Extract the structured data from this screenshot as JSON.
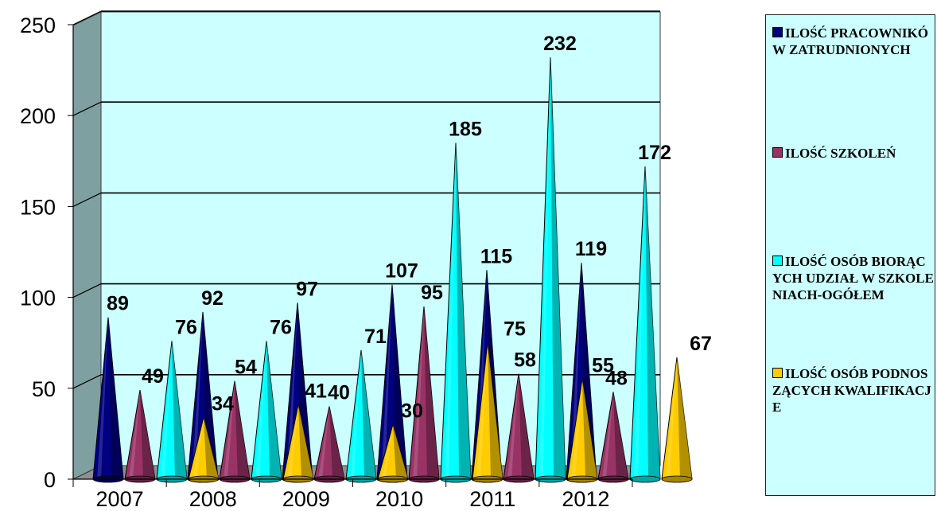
{
  "chart_data": {
    "type": "bar",
    "style": "3d-cone",
    "categories": [
      "2007",
      "2008",
      "2009",
      "2010",
      "2011",
      "2012"
    ],
    "series": [
      {
        "name": "ILOŚĆ PRACOWNIKÓW ZATRUDNIONYCH",
        "color": "#000080",
        "values": [
          89,
          92,
          97,
          107,
          115,
          119
        ]
      },
      {
        "name": "ILOŚĆ SZKOLEŃ",
        "color": "#993366",
        "values": [
          49,
          54,
          40,
          95,
          58,
          48
        ]
      },
      {
        "name": "ILOŚĆ OSÓB BIORĄCYCH UDZIAŁ W SZKOLENIACH-OGÓŁEM",
        "color": "#00ffff",
        "values": [
          76,
          76,
          71,
          185,
          232,
          172
        ]
      },
      {
        "name": "ILOŚĆ OSÓB PODNOSZĄCYCH KWALIFIKACJE",
        "color": "#ffcc00",
        "values": [
          34,
          41,
          30,
          75,
          55,
          67
        ]
      }
    ],
    "yticks": [
      0,
      50,
      100,
      150,
      200,
      250
    ],
    "ylim": [
      0,
      250
    ],
    "grid": true,
    "legend_position": "right",
    "plot_background": "#ccffff",
    "wall_color": "#7fa0a0"
  }
}
